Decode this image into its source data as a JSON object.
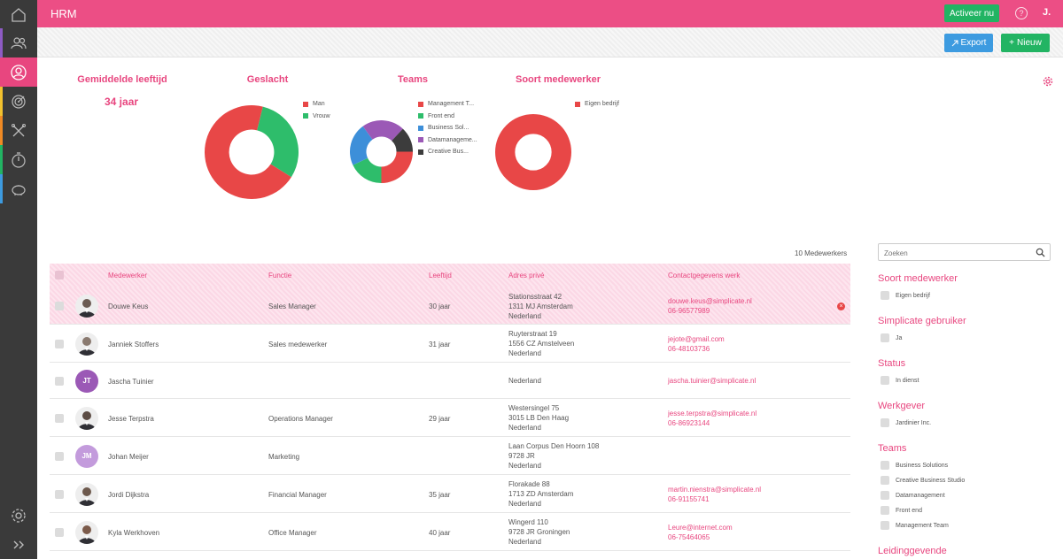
{
  "app": {
    "title": "HRM",
    "activate_label": "Activeer nu",
    "help_glyph": "?",
    "user_initial": "J."
  },
  "sidebar": {
    "items": [
      {
        "icon": "home-icon",
        "stripe": ""
      },
      {
        "icon": "people-icon",
        "stripe": "#8e5bc4"
      },
      {
        "icon": "user-circle-icon",
        "stripe": "#e8467f",
        "active": true
      },
      {
        "icon": "target-icon",
        "stripe": "#f2c12e"
      },
      {
        "icon": "tools-icon",
        "stripe": "#f08a24"
      },
      {
        "icon": "timer-icon",
        "stripe": "#22b463"
      },
      {
        "icon": "piggy-bank-icon",
        "stripe": "#3d9be0"
      }
    ],
    "bottom": [
      "settings-icon",
      "expand-icon"
    ]
  },
  "actions": {
    "export_label": "Export",
    "new_label": "Nieuw"
  },
  "stats": {
    "avg_age_title": "Gemiddelde leeftijd",
    "avg_age_value": "34 jaar",
    "gender_title": "Geslacht",
    "teams_title": "Teams",
    "type_title": "Soort medewerker"
  },
  "charts": [
    {
      "type": "pie",
      "title": "Geslacht",
      "colors": [
        "#e84747",
        "#2ebd6b"
      ],
      "categories": [
        "Man",
        "Vrouw"
      ],
      "values": [
        7,
        3
      ],
      "start_deg": 122
    },
    {
      "type": "pie",
      "title": "Teams",
      "colors": [
        "#e84747",
        "#2ebd6b",
        "#3d8fd9",
        "#9b59b6",
        "#3c3c3c"
      ],
      "categories": [
        "Management T...",
        "Front end",
        "Business Sol...",
        "Datamanageme...",
        "Creative Bus..."
      ],
      "values": [
        25,
        18,
        22,
        22,
        13
      ],
      "start_deg": 90
    },
    {
      "type": "pie",
      "title": "Soort medewerker",
      "colors": [
        "#e84747"
      ],
      "categories": [
        "Eigen bedrijf"
      ],
      "values": [
        10
      ],
      "start_deg": 0
    }
  ],
  "table": {
    "count_label": "10 Medewerkers",
    "headers": [
      "Medewerker",
      "Functie",
      "Leeftijd",
      "Adres privé",
      "Contactgegevens werk"
    ],
    "rows": [
      {
        "name": "Douwe Keus",
        "function": "Sales Manager",
        "age": "30 jaar",
        "address": [
          "Stationsstraat 42",
          "1311 MJ Amsterdam",
          "Nederland"
        ],
        "contact": [
          "douwe.keus@simplicate.nl",
          "06-96577989"
        ],
        "avatar": "photo",
        "avatar_color": "#6b5b53",
        "highlight": true
      },
      {
        "name": "Janniek Stoffers",
        "function": "Sales medewerker",
        "age": "31 jaar",
        "address": [
          "Ruyterstraat 19",
          "1556 CZ Amstelveen",
          "Nederland"
        ],
        "contact": [
          "jejote@gmail.com",
          "06-48103736"
        ],
        "avatar": "photo",
        "avatar_color": "#8a7a70"
      },
      {
        "name": "Jascha Tuinier",
        "function": "",
        "age": "",
        "address": [
          "Nederland"
        ],
        "contact": [
          "jascha.tuinier@simplicate.nl"
        ],
        "avatar": "JT",
        "avatar_color": "#9b59b6"
      },
      {
        "name": "Jesse Terpstra",
        "function": "Operations Manager",
        "age": "29 jaar",
        "address": [
          "Westersingel 75",
          "3015 LB Den Haag",
          "Nederland"
        ],
        "contact": [
          "jesse.terpstra@simplicate.nl",
          "06-86923144"
        ],
        "avatar": "photo",
        "avatar_color": "#5c4c44"
      },
      {
        "name": "Johan Meijer",
        "function": "Marketing",
        "age": "",
        "address": [
          "Laan Corpus Den Hoorn 108",
          "9728 JR",
          "Nederland"
        ],
        "contact": [],
        "avatar": "JM",
        "avatar_color": "#c39bdc"
      },
      {
        "name": "Jordi Dijkstra",
        "function": "Financial Manager",
        "age": "35 jaar",
        "address": [
          "Florakade 88",
          "1713 ZD Amsterdam",
          "Nederland"
        ],
        "contact": [
          "martin.nienstra@simplicate.nl",
          "06-91155741"
        ],
        "avatar": "photo",
        "avatar_color": "#6e5a4e"
      },
      {
        "name": "Kyla Werkhoven",
        "function": "Office Manager",
        "age": "40 jaar",
        "address": [
          "Wingerd 110",
          "9728 JR Groningen",
          "Nederland"
        ],
        "contact": [
          "Leure@internet.com",
          "06-75464065"
        ],
        "avatar": "photo",
        "avatar_color": "#7b5a4a"
      }
    ]
  },
  "filters": {
    "search_placeholder": "Zoeken",
    "groups": [
      {
        "title": "Soort medewerker",
        "options": [
          "Eigen bedrijf"
        ]
      },
      {
        "title": "Simplicate gebruiker",
        "options": [
          "Ja"
        ]
      },
      {
        "title": "Status",
        "options": [
          "In dienst"
        ]
      },
      {
        "title": "Werkgever",
        "options": [
          "Jardinier Inc."
        ]
      },
      {
        "title": "Teams",
        "options": [
          "Business Solutions",
          "Creative Business Studio",
          "Datamanagement",
          "Front end",
          "Management Team"
        ]
      },
      {
        "title": "Leidinggevende",
        "options": []
      }
    ]
  }
}
